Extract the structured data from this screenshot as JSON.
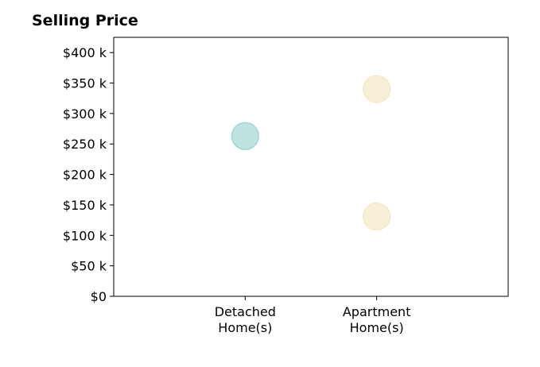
{
  "chart_data": {
    "type": "scatter",
    "title": "Selling Price",
    "categories": [
      "Detached\nHome(s)",
      "Apartment\nHome(s)"
    ],
    "y_tick_labels": [
      "$0",
      "$50 k",
      "$100 k",
      "$150 k",
      "$200 k",
      "$250 k",
      "$300 k",
      "$350 k",
      "$400 k"
    ],
    "y_ticks": [
      0,
      50000,
      100000,
      150000,
      200000,
      250000,
      300000,
      350000,
      400000
    ],
    "ylim": [
      0,
      425000
    ],
    "xlim": [
      -1,
      2
    ],
    "series": [
      {
        "category": "Detached\nHome(s)",
        "color": "#7fc8c1",
        "points": [
          {
            "x": 0,
            "y": 263000
          }
        ]
      },
      {
        "category": "Apartment\nHome(s)",
        "color": "#f2dfb0",
        "points": [
          {
            "x": 1,
            "y": 340000
          },
          {
            "x": 1,
            "y": 131000
          }
        ]
      }
    ],
    "marker_alpha": 0.5,
    "grid": false
  }
}
